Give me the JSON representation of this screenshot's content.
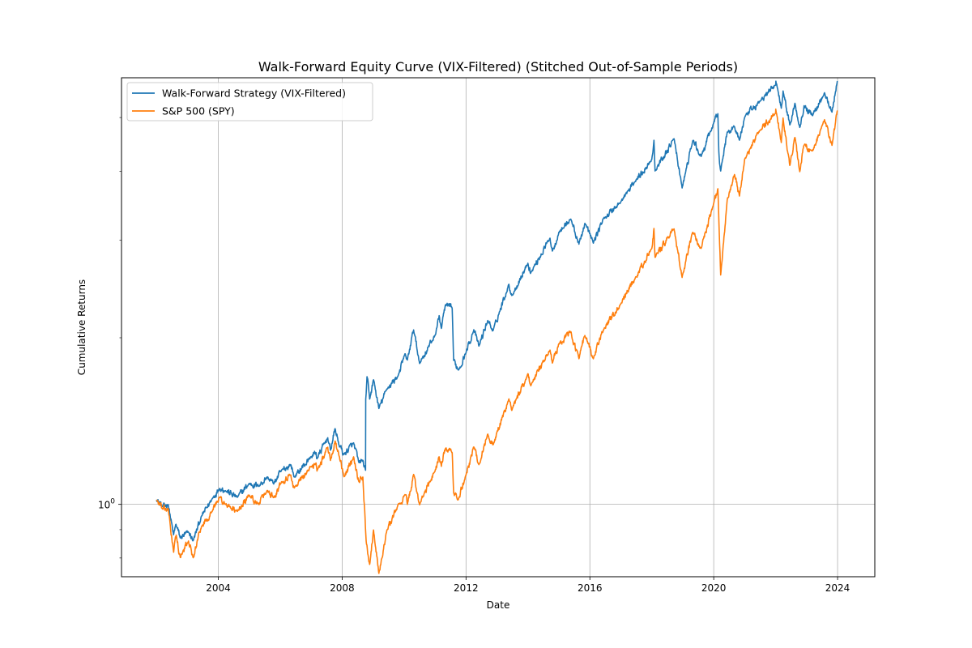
{
  "chart_data": {
    "type": "line",
    "title": "Walk-Forward Equity Curve (VIX-Filtered) (Stitched Out-of-Sample Periods)",
    "xlabel": "Date",
    "ylabel": "Cumulative Returns",
    "x_scale": "time",
    "y_scale": "log",
    "xlim": [
      "2000-11-15",
      "2025-03-15"
    ],
    "ylim": [
      0.74,
      5.9
    ],
    "x_ticks": [
      {
        "date": "2004-01-01",
        "label": "2004"
      },
      {
        "date": "2008-01-01",
        "label": "2008"
      },
      {
        "date": "2012-01-01",
        "label": "2012"
      },
      {
        "date": "2016-01-01",
        "label": "2016"
      },
      {
        "date": "2020-01-01",
        "label": "2020"
      },
      {
        "date": "2024-01-01",
        "label": "2024"
      }
    ],
    "y_ticks": [
      {
        "value": 1.0,
        "label": "10",
        "superscript": "0"
      }
    ],
    "y_minor_ticks": [
      0.8,
      0.9,
      2,
      3,
      4,
      5
    ],
    "grid": true,
    "legend": "upper-left",
    "series": [
      {
        "name": "Walk-Forward Strategy (VIX-Filtered)",
        "color": "#1f77b4",
        "points": [
          [
            "2002-01-02",
            1.02
          ],
          [
            "2002-03-15",
            0.99
          ],
          [
            "2002-05-20",
            1.0
          ],
          [
            "2002-07-22",
            0.88
          ],
          [
            "2002-08-20",
            0.92
          ],
          [
            "2002-10-09",
            0.87
          ],
          [
            "2003-01-15",
            0.89
          ],
          [
            "2003-03-11",
            0.86
          ],
          [
            "2003-06-15",
            0.95
          ],
          [
            "2003-10-15",
            1.02
          ],
          [
            "2004-01-15",
            1.07
          ],
          [
            "2004-03-20",
            1.06
          ],
          [
            "2004-08-12",
            1.03
          ],
          [
            "2004-12-31",
            1.09
          ],
          [
            "2005-04-20",
            1.08
          ],
          [
            "2005-08-01",
            1.12
          ],
          [
            "2005-10-15",
            1.09
          ],
          [
            "2006-01-15",
            1.15
          ],
          [
            "2006-05-05",
            1.18
          ],
          [
            "2006-06-15",
            1.12
          ],
          [
            "2006-12-31",
            1.22
          ],
          [
            "2007-02-27",
            1.24
          ],
          [
            "2007-03-10",
            1.21
          ],
          [
            "2007-07-15",
            1.32
          ],
          [
            "2007-08-15",
            1.25
          ],
          [
            "2007-10-09",
            1.37
          ],
          [
            "2007-11-26",
            1.28
          ],
          [
            "2008-01-22",
            1.23
          ],
          [
            "2008-05-15",
            1.29
          ],
          [
            "2008-07-15",
            1.19
          ],
          [
            "2008-09-01",
            1.2
          ],
          [
            "2008-10-03",
            1.15
          ],
          [
            "2008-10-05",
            1.55
          ],
          [
            "2008-10-20",
            1.7
          ],
          [
            "2008-11-20",
            1.55
          ],
          [
            "2009-01-05",
            1.68
          ],
          [
            "2009-03-09",
            1.49
          ],
          [
            "2009-06-15",
            1.62
          ],
          [
            "2009-10-15",
            1.7
          ],
          [
            "2010-01-15",
            1.87
          ],
          [
            "2010-02-08",
            1.82
          ],
          [
            "2010-04-23",
            2.07
          ],
          [
            "2010-07-02",
            1.8
          ],
          [
            "2010-12-31",
            2.02
          ],
          [
            "2011-02-18",
            2.19
          ],
          [
            "2011-03-16",
            2.08
          ],
          [
            "2011-05-02",
            2.29
          ],
          [
            "2011-07-22",
            2.26
          ],
          [
            "2011-08-08",
            1.82
          ],
          [
            "2011-10-03",
            1.75
          ],
          [
            "2011-12-31",
            1.88
          ],
          [
            "2012-04-02",
            2.07
          ],
          [
            "2012-06-01",
            1.93
          ],
          [
            "2012-09-14",
            2.15
          ],
          [
            "2012-11-15",
            2.06
          ],
          [
            "2013-05-21",
            2.5
          ],
          [
            "2013-06-24",
            2.38
          ],
          [
            "2013-12-31",
            2.73
          ],
          [
            "2014-02-03",
            2.62
          ],
          [
            "2014-09-18",
            3.03
          ],
          [
            "2014-10-15",
            2.87
          ],
          [
            "2014-12-31",
            3.1
          ],
          [
            "2015-05-21",
            3.28
          ],
          [
            "2015-08-25",
            2.95
          ],
          [
            "2015-11-03",
            3.22
          ],
          [
            "2016-02-11",
            2.97
          ],
          [
            "2016-06-08",
            3.28
          ],
          [
            "2016-12-31",
            3.52
          ],
          [
            "2017-06-15",
            3.83
          ],
          [
            "2017-12-31",
            4.2
          ],
          [
            "2018-01-26",
            4.55
          ],
          [
            "2018-02-08",
            4.0
          ],
          [
            "2018-09-20",
            4.58
          ],
          [
            "2018-12-24",
            3.73
          ],
          [
            "2019-04-30",
            4.55
          ],
          [
            "2019-08-05",
            4.25
          ],
          [
            "2019-12-31",
            4.88
          ],
          [
            "2020-02-19",
            5.08
          ],
          [
            "2020-03-01",
            4.35
          ],
          [
            "2020-03-23",
            4.0
          ],
          [
            "2020-06-08",
            4.7
          ],
          [
            "2020-09-02",
            4.82
          ],
          [
            "2020-10-30",
            4.55
          ],
          [
            "2020-12-31",
            5.0
          ],
          [
            "2021-06-30",
            5.35
          ],
          [
            "2021-12-31",
            5.73
          ],
          [
            "2022-01-03",
            5.83
          ],
          [
            "2022-03-08",
            5.2
          ],
          [
            "2022-03-29",
            5.6
          ],
          [
            "2022-06-16",
            4.85
          ],
          [
            "2022-08-16",
            5.3
          ],
          [
            "2022-10-12",
            4.8
          ],
          [
            "2022-12-01",
            5.25
          ],
          [
            "2023-03-13",
            5.05
          ],
          [
            "2023-07-31",
            5.55
          ],
          [
            "2023-10-27",
            5.12
          ],
          [
            "2023-12-29",
            5.82
          ]
        ]
      },
      {
        "name": "S&P 500 (SPY)",
        "color": "#ff7f0e",
        "points": [
          [
            "2002-01-02",
            1.02
          ],
          [
            "2002-03-15",
            0.98
          ],
          [
            "2002-05-20",
            0.98
          ],
          [
            "2002-07-23",
            0.82
          ],
          [
            "2002-08-22",
            0.88
          ],
          [
            "2002-10-09",
            0.8
          ],
          [
            "2003-01-14",
            0.86
          ],
          [
            "2003-03-11",
            0.8
          ],
          [
            "2003-06-15",
            0.91
          ],
          [
            "2003-10-15",
            0.97
          ],
          [
            "2004-01-15",
            1.03
          ],
          [
            "2004-03-20",
            1.0
          ],
          [
            "2004-08-12",
            0.97
          ],
          [
            "2004-12-31",
            1.04
          ],
          [
            "2005-04-20",
            1.0
          ],
          [
            "2005-08-01",
            1.06
          ],
          [
            "2005-10-15",
            1.03
          ],
          [
            "2006-01-15",
            1.1
          ],
          [
            "2006-05-05",
            1.13
          ],
          [
            "2006-06-15",
            1.07
          ],
          [
            "2006-12-31",
            1.17
          ],
          [
            "2007-02-27",
            1.19
          ],
          [
            "2007-03-10",
            1.15
          ],
          [
            "2007-07-15",
            1.27
          ],
          [
            "2007-08-15",
            1.2
          ],
          [
            "2007-10-09",
            1.3
          ],
          [
            "2007-11-26",
            1.22
          ],
          [
            "2008-01-22",
            1.12
          ],
          [
            "2008-05-15",
            1.22
          ],
          [
            "2008-07-15",
            1.1
          ],
          [
            "2008-09-01",
            1.12
          ],
          [
            "2008-10-10",
            0.86
          ],
          [
            "2008-11-20",
            0.78
          ],
          [
            "2009-01-05",
            0.9
          ],
          [
            "2009-03-09",
            0.75
          ],
          [
            "2009-06-15",
            0.9
          ],
          [
            "2009-10-15",
            0.99
          ],
          [
            "2010-01-15",
            1.04
          ],
          [
            "2010-02-08",
            1.0
          ],
          [
            "2010-04-23",
            1.13
          ],
          [
            "2010-07-02",
            1.0
          ],
          [
            "2010-12-31",
            1.15
          ],
          [
            "2011-02-18",
            1.22
          ],
          [
            "2011-03-16",
            1.17
          ],
          [
            "2011-05-02",
            1.26
          ],
          [
            "2011-07-22",
            1.24
          ],
          [
            "2011-08-08",
            1.05
          ],
          [
            "2011-10-03",
            1.02
          ],
          [
            "2011-12-31",
            1.13
          ],
          [
            "2012-04-02",
            1.27
          ],
          [
            "2012-06-01",
            1.18
          ],
          [
            "2012-09-14",
            1.34
          ],
          [
            "2012-11-15",
            1.28
          ],
          [
            "2013-05-21",
            1.55
          ],
          [
            "2013-06-24",
            1.48
          ],
          [
            "2013-12-31",
            1.72
          ],
          [
            "2014-02-03",
            1.64
          ],
          [
            "2014-09-18",
            1.9
          ],
          [
            "2014-10-15",
            1.8
          ],
          [
            "2014-12-31",
            1.95
          ],
          [
            "2015-05-21",
            2.05
          ],
          [
            "2015-08-25",
            1.83
          ],
          [
            "2015-11-03",
            2.02
          ],
          [
            "2016-02-11",
            1.83
          ],
          [
            "2016-06-08",
            2.07
          ],
          [
            "2016-12-31",
            2.3
          ],
          [
            "2017-06-15",
            2.55
          ],
          [
            "2017-12-31",
            2.9
          ],
          [
            "2018-01-26",
            3.15
          ],
          [
            "2018-02-08",
            2.8
          ],
          [
            "2018-09-20",
            3.15
          ],
          [
            "2018-12-24",
            2.57
          ],
          [
            "2019-04-30",
            3.1
          ],
          [
            "2019-08-05",
            2.9
          ],
          [
            "2019-12-31",
            3.5
          ],
          [
            "2020-02-19",
            3.72
          ],
          [
            "2020-03-23",
            2.6
          ],
          [
            "2020-06-08",
            3.55
          ],
          [
            "2020-09-02",
            3.95
          ],
          [
            "2020-10-30",
            3.6
          ],
          [
            "2020-12-31",
            4.2
          ],
          [
            "2021-06-30",
            4.75
          ],
          [
            "2021-12-31",
            5.1
          ],
          [
            "2022-01-03",
            5.15
          ],
          [
            "2022-03-08",
            4.5
          ],
          [
            "2022-03-29",
            5.0
          ],
          [
            "2022-06-16",
            4.1
          ],
          [
            "2022-08-16",
            4.6
          ],
          [
            "2022-10-12",
            4.0
          ],
          [
            "2022-12-01",
            4.45
          ],
          [
            "2023-03-13",
            4.35
          ],
          [
            "2023-07-31",
            4.95
          ],
          [
            "2023-10-27",
            4.45
          ],
          [
            "2023-12-29",
            5.15
          ]
        ]
      }
    ]
  }
}
